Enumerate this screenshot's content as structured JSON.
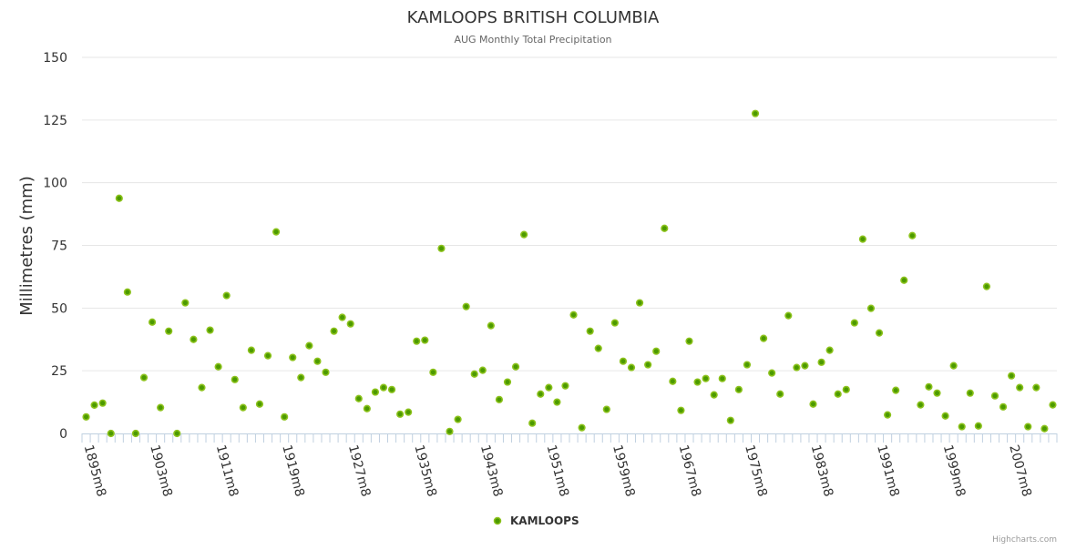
{
  "chart_data": {
    "type": "scatter",
    "title": "KAMLOOPS BRITISH COLUMBIA",
    "subtitle": "AUG Monthly Total Precipitation",
    "xlabel": "",
    "ylabel": "Millimetres (mm)",
    "ylim": [
      0,
      150
    ],
    "yticks": [
      0,
      25,
      50,
      75,
      100,
      125,
      150
    ],
    "grid": true,
    "legend": {
      "entries": [
        "KAMLOOPS"
      ],
      "placement": "bottom-center"
    },
    "credits": "Highcharts.com",
    "x_label_step": 8,
    "x_label_suffix": "m8",
    "x_start_year": 1895,
    "series": [
      {
        "name": "KAMLOOPS",
        "color": "#4c9a00",
        "ring_color": "#8cc21c",
        "values": [
          6.6,
          11.3,
          12.1,
          0,
          93.8,
          56.4,
          0,
          22.3,
          44.4,
          10.3,
          40.8,
          0,
          52.1,
          37.5,
          18.3,
          41.2,
          26.6,
          55,
          21.5,
          10.3,
          33.2,
          11.7,
          31,
          80.4,
          6.6,
          30.3,
          22.3,
          35,
          28.8,
          24.4,
          40.8,
          46.3,
          43.7,
          13.9,
          9.9,
          16.5,
          18.3,
          17.5,
          7.7,
          8.5,
          36.8,
          37.2,
          24.4,
          73.8,
          0.8,
          5.6,
          50.6,
          23.7,
          25.2,
          43,
          13.5,
          20.5,
          26.6,
          79.3,
          4.1,
          15.7,
          18.3,
          12.5,
          19,
          47.3,
          2.3,
          40.8,
          33.9,
          9.6,
          44.1,
          28.8,
          26.3,
          52.1,
          27.4,
          32.8,
          81.8,
          20.8,
          9.2,
          36.8,
          20.5,
          21.9,
          15.4,
          21.9,
          5.2,
          17.5,
          27.4,
          127.6,
          37.9,
          24.1,
          15.7,
          47,
          26.3,
          27,
          11.7,
          28.4,
          33.2,
          15.7,
          17.5,
          44.1,
          77.5,
          49.9,
          40.1,
          7.4,
          17.2,
          61.1,
          78.9,
          11.4,
          18.6,
          16.1,
          7,
          27,
          2.7,
          16.1,
          3,
          58.6,
          15,
          10.6,
          23,
          18.3,
          2.7,
          18.3,
          1.9,
          11.4
        ]
      }
    ]
  }
}
